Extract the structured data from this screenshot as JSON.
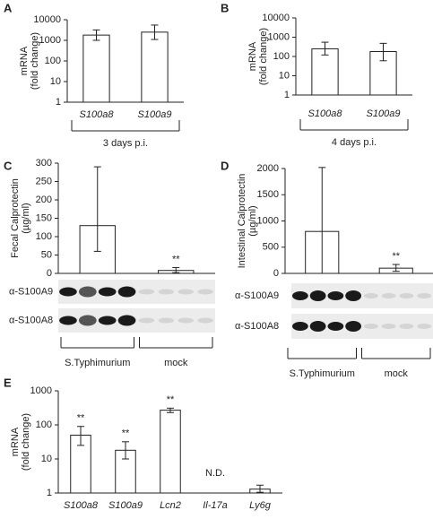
{
  "chart_data": [
    {
      "type": "bar",
      "panel": "A",
      "ylabel": [
        "mRNA",
        "(fold change)"
      ],
      "log_scale": true,
      "categories": [
        "S100a8",
        "S100a9"
      ],
      "values": [
        1800,
        2500
      ],
      "error_lower": [
        1000,
        1100
      ],
      "error_upper": [
        3200,
        5500
      ],
      "color": "#ffffff",
      "ylim": [
        1,
        10000
      ],
      "yticks": [
        1,
        10,
        100,
        1000,
        10000
      ],
      "group_label": "3 days p.i."
    },
    {
      "type": "bar",
      "panel": "B",
      "ylabel": [
        "mRNA",
        "(fold change)"
      ],
      "log_scale": true,
      "categories": [
        "S100a8",
        "S100a9"
      ],
      "values": [
        250,
        180
      ],
      "error_lower": [
        120,
        60
      ],
      "error_upper": [
        550,
        480
      ],
      "color": "#ffffff",
      "ylim": [
        1,
        10000
      ],
      "yticks": [
        1,
        10,
        100,
        1000,
        10000
      ],
      "group_label": "4 days p.i."
    },
    {
      "type": "bar",
      "panel": "C",
      "ylabel": [
        "Fecal Calprotectin",
        "(µg/ml)"
      ],
      "log_scale": false,
      "categories": [
        "S.Typhimurium",
        "mock"
      ],
      "values": [
        130,
        8
      ],
      "error_lower": [
        60,
        2
      ],
      "error_upper": [
        290,
        16
      ],
      "color": "#ffffff",
      "ylim": [
        0,
        300
      ],
      "yticks": [
        0,
        50,
        100,
        150,
        200,
        250,
        300
      ],
      "value_annotations": [
        null,
        "**"
      ],
      "blot_labels": [
        "α-S100A9",
        "α-S100A8"
      ]
    },
    {
      "type": "bar",
      "panel": "D",
      "ylabel": [
        "Intestinal Calprotectin",
        "(µg/ml)"
      ],
      "log_scale": false,
      "categories": [
        "S.Typhimurium",
        "mock"
      ],
      "values": [
        800,
        100
      ],
      "error_lower": [
        0,
        40
      ],
      "error_upper": [
        2020,
        170
      ],
      "color": "#ffffff",
      "ylim": [
        0,
        2000
      ],
      "yticks": [
        0,
        500,
        1000,
        1500,
        2000
      ],
      "value_annotations": [
        null,
        "**"
      ],
      "blot_labels": [
        "α-S100A9",
        "α-S100A8"
      ]
    },
    {
      "type": "bar",
      "panel": "E",
      "ylabel": [
        "mRNA",
        "(fold change)"
      ],
      "log_scale": true,
      "categories": [
        "S100a8",
        "S100a9",
        "Lcn2",
        "Il-17a",
        "Ly6g"
      ],
      "values": [
        50,
        18,
        270,
        null,
        1.3
      ],
      "error_lower": [
        25,
        10,
        230,
        null,
        1.05
      ],
      "error_upper": [
        90,
        32,
        310,
        null,
        1.7
      ],
      "color": "#ffffff",
      "ylim": [
        1,
        1000
      ],
      "yticks": [
        1,
        10,
        100,
        1000
      ],
      "value_annotations": [
        "**",
        "**",
        "**",
        "N.D.",
        null
      ]
    }
  ]
}
